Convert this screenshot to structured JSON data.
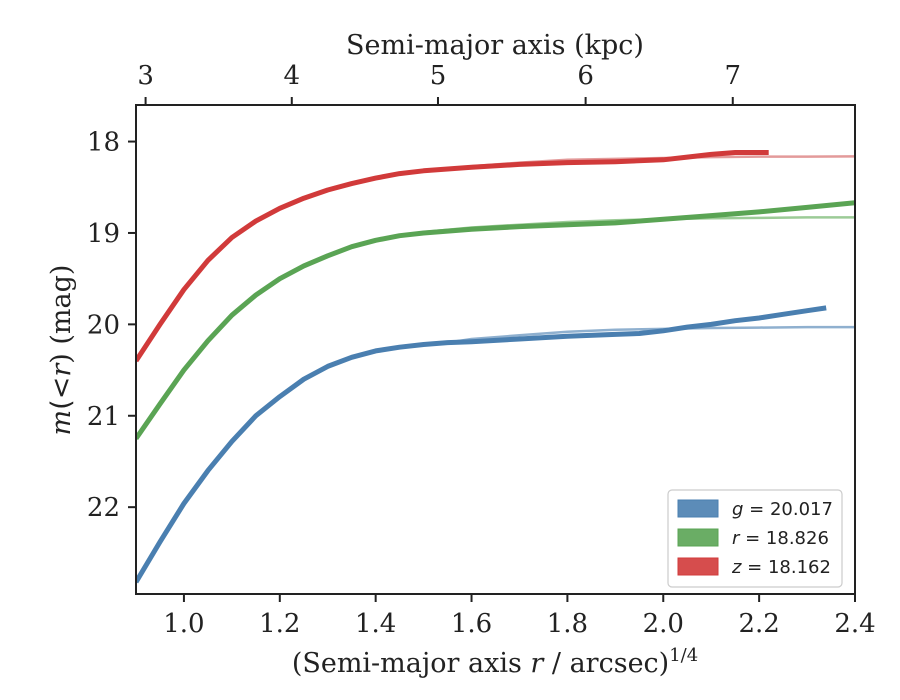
{
  "chart_data": {
    "type": "line",
    "xlabel_main": "(Semi-major axis ",
    "xlabel_r": "r",
    "xlabel_rest": " / arcsec)",
    "xlabel_sup": "1/4",
    "xlabel_top": "Semi-major axis (kpc)",
    "ylabel_m": "m",
    "ylabel_mid": "(<",
    "ylabel_r": "r",
    "ylabel_end": ") (mag)",
    "xlim": [
      0.9,
      2.4
    ],
    "ylim": [
      22.95,
      17.6
    ],
    "y_inverted": true,
    "x_ticks": [
      {
        "v": 1.0,
        "label": "1.0"
      },
      {
        "v": 1.2,
        "label": "1.2"
      },
      {
        "v": 1.4,
        "label": "1.4"
      },
      {
        "v": 1.6,
        "label": "1.6"
      },
      {
        "v": 1.8,
        "label": "1.8"
      },
      {
        "v": 2.0,
        "label": "2.0"
      },
      {
        "v": 2.2,
        "label": "2.2"
      },
      {
        "v": 2.4,
        "label": "2.4"
      }
    ],
    "y_ticks": [
      {
        "v": 18,
        "label": "18"
      },
      {
        "v": 19,
        "label": "19"
      },
      {
        "v": 20,
        "label": "20"
      },
      {
        "v": 21,
        "label": "21"
      },
      {
        "v": 22,
        "label": "22"
      }
    ],
    "top_ticks": [
      {
        "v": 0.92,
        "label": "3"
      },
      {
        "v": 1.225,
        "label": "4"
      },
      {
        "v": 1.53,
        "label": "5"
      },
      {
        "v": 1.838,
        "label": "6"
      },
      {
        "v": 2.145,
        "label": "7"
      }
    ],
    "legend_position": "lower right",
    "series": [
      {
        "name": "g",
        "legend_value": "= 20.017",
        "color": "#4a7fb0",
        "fit_color": "#8fb0cf",
        "x": [
          0.9,
          0.95,
          1.0,
          1.05,
          1.1,
          1.15,
          1.2,
          1.25,
          1.3,
          1.35,
          1.4,
          1.45,
          1.5,
          1.55,
          1.6,
          1.7,
          1.8,
          1.9,
          1.95,
          2.0,
          2.05,
          2.1,
          2.15,
          2.2,
          2.25,
          2.3,
          2.34
        ],
        "y": [
          22.82,
          22.38,
          21.96,
          21.6,
          21.28,
          21.0,
          20.79,
          20.6,
          20.46,
          20.36,
          20.29,
          20.25,
          20.22,
          20.2,
          20.19,
          20.16,
          20.13,
          20.11,
          20.1,
          20.07,
          20.03,
          20.0,
          19.96,
          19.93,
          19.89,
          19.85,
          19.82
        ],
        "fit_x": [
          1.55,
          1.6,
          1.7,
          1.8,
          1.9,
          2.0,
          2.1,
          2.2,
          2.3,
          2.4
        ],
        "fit_y": [
          20.2,
          20.16,
          20.12,
          20.08,
          20.06,
          20.05,
          20.04,
          20.035,
          20.03,
          20.03
        ]
      },
      {
        "name": "r",
        "legend_value": "= 18.826",
        "color": "#5aa454",
        "fit_color": "#9ccb97",
        "x": [
          0.9,
          0.95,
          1.0,
          1.05,
          1.1,
          1.15,
          1.2,
          1.25,
          1.3,
          1.35,
          1.4,
          1.45,
          1.5,
          1.55,
          1.6,
          1.7,
          1.8,
          1.9,
          2.0,
          2.1,
          2.2,
          2.3,
          2.4
        ],
        "y": [
          21.25,
          20.87,
          20.5,
          20.18,
          19.9,
          19.68,
          19.5,
          19.36,
          19.25,
          19.15,
          19.08,
          19.03,
          19.0,
          18.98,
          18.96,
          18.93,
          18.91,
          18.89,
          18.85,
          18.81,
          18.77,
          18.72,
          18.67
        ],
        "fit_x": [
          1.45,
          1.5,
          1.6,
          1.7,
          1.8,
          1.9,
          2.0,
          2.1,
          2.2,
          2.3,
          2.4
        ],
        "fit_y": [
          19.03,
          18.99,
          18.94,
          18.91,
          18.88,
          18.86,
          18.85,
          18.84,
          18.835,
          18.83,
          18.83
        ]
      },
      {
        "name": "z",
        "legend_value": "= 18.162",
        "color": "#d13a3a",
        "fit_color": "#e39a9a",
        "x": [
          0.9,
          0.95,
          1.0,
          1.05,
          1.1,
          1.15,
          1.2,
          1.25,
          1.3,
          1.35,
          1.4,
          1.45,
          1.5,
          1.55,
          1.6,
          1.7,
          1.8,
          1.9,
          2.0,
          2.05,
          2.1,
          2.15,
          2.22
        ],
        "y": [
          20.4,
          20.0,
          19.62,
          19.3,
          19.05,
          18.87,
          18.73,
          18.62,
          18.53,
          18.46,
          18.4,
          18.35,
          18.32,
          18.3,
          18.28,
          18.25,
          18.23,
          18.22,
          18.2,
          18.17,
          18.14,
          18.12,
          18.12
        ],
        "fit_x": [
          1.55,
          1.6,
          1.7,
          1.8,
          1.9,
          2.0,
          2.1,
          2.2,
          2.3,
          2.4
        ],
        "fit_y": [
          18.3,
          18.27,
          18.23,
          18.2,
          18.19,
          18.18,
          18.17,
          18.165,
          18.165,
          18.162
        ]
      }
    ]
  }
}
